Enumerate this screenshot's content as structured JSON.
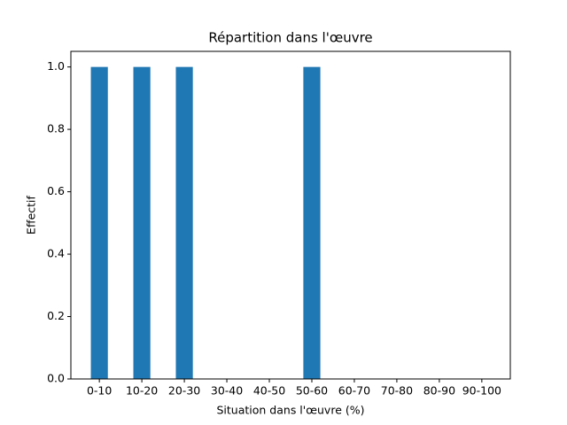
{
  "chart_data": {
    "type": "bar",
    "title": "Répartition dans l'œuvre",
    "x_label": "Situation dans l'œuvre (%)",
    "y_label": "Effectif",
    "categories": [
      "0-10",
      "10-20",
      "20-30",
      "30-40",
      "40-50",
      "50-60",
      "60-70",
      "70-80",
      "80-90",
      "90-100"
    ],
    "values": [
      1,
      1,
      1,
      0,
      0,
      1,
      0,
      0,
      0,
      0
    ],
    "color": "#1f77b4",
    "ylim": [
      0,
      1.05
    ],
    "yticks": [
      {
        "value": 0,
        "label": "0.0"
      },
      0.2,
      0.4,
      0.6,
      0.8,
      {
        "value": 1,
        "label": "1.0"
      }
    ],
    "grid": false
  }
}
